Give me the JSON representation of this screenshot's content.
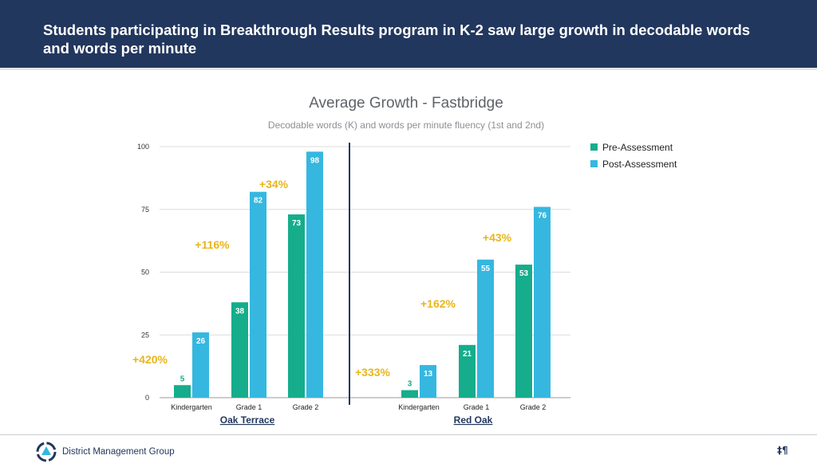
{
  "header": {
    "title": "Students participating in Breakthrough Results program in K-2 saw large growth in decodable words and words per minute"
  },
  "footer": {
    "brand": "District Management Group",
    "mark": "‡¶"
  },
  "colors": {
    "header_bg": "#22375e",
    "pre": "#15ad8b",
    "post": "#35b7e0",
    "growth_label": "#e8b51c",
    "school_label": "#22375e",
    "divider": "#22375e"
  },
  "chart_data": {
    "type": "bar",
    "title": "Average Growth - Fastbridge",
    "subtitle": "Decodable words (K) and words per minute fluency (1st and 2nd)",
    "xlabel": "",
    "ylabel": "",
    "ylim": [
      0,
      100
    ],
    "yticks": [
      0,
      25,
      50,
      75,
      100
    ],
    "grid": true,
    "legend_position": "top-right",
    "series": [
      {
        "name": "Pre-Assessment",
        "color": "#15ad8b"
      },
      {
        "name": "Post-Assessment",
        "color": "#35b7e0"
      }
    ],
    "groups": [
      {
        "name": "Oak Terrace",
        "categories": [
          {
            "label": "Kindergarten",
            "pre": 5,
            "post": 26,
            "growth": "+420%"
          },
          {
            "label": "Grade 1",
            "pre": 38,
            "post": 82,
            "growth": "+116%"
          },
          {
            "label": "Grade 2",
            "pre": 73,
            "post": 98,
            "growth": "+34%"
          }
        ]
      },
      {
        "name": "Red Oak",
        "categories": [
          {
            "label": "Kindergarten",
            "pre": 3,
            "post": 13,
            "growth": "+333%"
          },
          {
            "label": "Grade 1",
            "pre": 21,
            "post": 55,
            "growth": "+162%"
          },
          {
            "label": "Grade 2",
            "pre": 53,
            "post": 76,
            "growth": "+43%"
          }
        ]
      }
    ]
  }
}
